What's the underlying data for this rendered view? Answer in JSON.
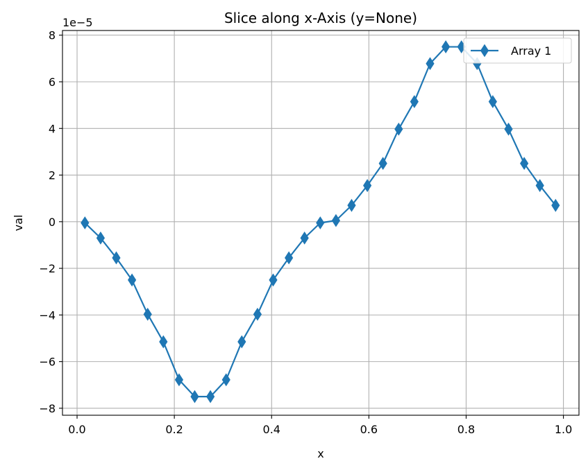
{
  "chart_data": {
    "type": "line",
    "title": "Slice along x-Axis (y=None)",
    "xlabel": "x",
    "ylabel": "val",
    "y_offset_label": "1e−5",
    "xlim": [
      -0.03,
      1.032
    ],
    "ylim": [
      -8.3,
      8.2
    ],
    "x_ticks": [
      0.0,
      0.2,
      0.4,
      0.6,
      0.8,
      1.0
    ],
    "x_tick_labels": [
      "0.0",
      "0.2",
      "0.4",
      "0.6",
      "0.8",
      "1.0"
    ],
    "y_ticks": [
      -8,
      -6,
      -4,
      -2,
      0,
      2,
      4,
      6,
      8
    ],
    "y_tick_labels": [
      "−8",
      "−6",
      "−4",
      "−2",
      "0",
      "2",
      "4",
      "6",
      "8"
    ],
    "grid": true,
    "legend_position": "top-right",
    "series": [
      {
        "name": "Array 1",
        "color": "#1f77b4",
        "marker": "thin-diamond",
        "x": [
          0.0161,
          0.0484,
          0.0806,
          0.1129,
          0.1452,
          0.1774,
          0.2097,
          0.2419,
          0.2742,
          0.3065,
          0.3387,
          0.371,
          0.4032,
          0.4355,
          0.4677,
          0.5,
          0.5323,
          0.5645,
          0.5968,
          0.629,
          0.6613,
          0.6935,
          0.7258,
          0.7581,
          0.7903,
          0.8226,
          0.8548,
          0.8871,
          0.9194,
          0.9516,
          0.9839
        ],
        "y": [
          -0.05,
          -0.7,
          -1.55,
          -2.5,
          -3.97,
          -5.15,
          -6.78,
          -7.5,
          -7.5,
          -6.78,
          -5.15,
          -3.97,
          -2.5,
          -1.55,
          -0.7,
          -0.05,
          0.05,
          0.7,
          1.55,
          2.5,
          3.97,
          5.15,
          6.78,
          7.5,
          7.5,
          6.78,
          5.15,
          3.97,
          2.5,
          1.55,
          0.7
        ]
      }
    ]
  }
}
